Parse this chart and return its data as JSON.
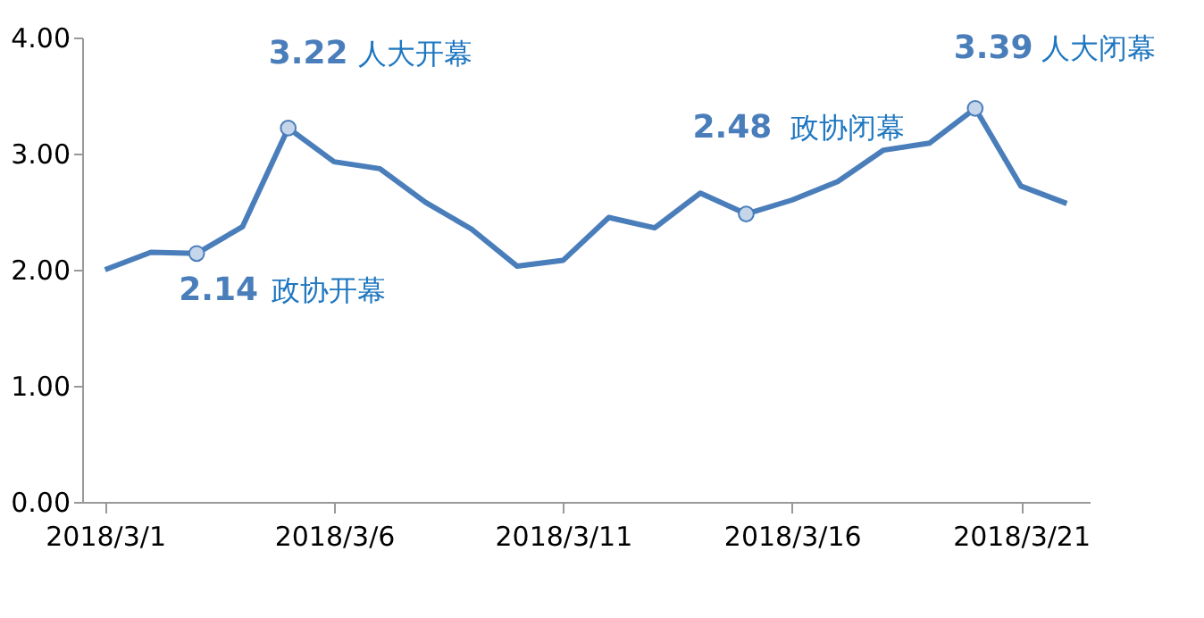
{
  "chart_data": {
    "type": "line",
    "categories": [
      "2018/3/1",
      null,
      null,
      null,
      null,
      "2018/3/6",
      null,
      null,
      null,
      null,
      "2018/3/11",
      null,
      null,
      null,
      null,
      "2018/3/16",
      null,
      null,
      null,
      null,
      "2018/3/21",
      null
    ],
    "series": [
      {
        "color": "#4a7ebb",
        "values": [
          2.0,
          2.15,
          2.14,
          2.37,
          3.22,
          2.93,
          2.87,
          2.58,
          2.35,
          2.03,
          2.08,
          2.45,
          2.36,
          2.66,
          2.48,
          2.6,
          2.76,
          3.03,
          3.09,
          3.39,
          2.72,
          2.57
        ],
        "value_labels": [
          null,
          null,
          "2.14",
          null,
          "3.22",
          null,
          null,
          null,
          null,
          null,
          null,
          null,
          null,
          null,
          "2.48",
          null,
          null,
          null,
          null,
          "3.39",
          null,
          null
        ]
      }
    ],
    "annotations": [
      "政协开幕",
      "人大开幕",
      "政协闭幕",
      "人大闭幕"
    ],
    "ylim": [
      0,
      4
    ],
    "yticks": [
      {
        "value": 0,
        "label": "0.00"
      },
      {
        "value": 1,
        "label": "1.00"
      },
      {
        "value": 2,
        "label": "2.00"
      },
      {
        "value": 3,
        "label": "3.00"
      },
      {
        "value": 4,
        "label": "4.00"
      }
    ],
    "grid": false
  }
}
